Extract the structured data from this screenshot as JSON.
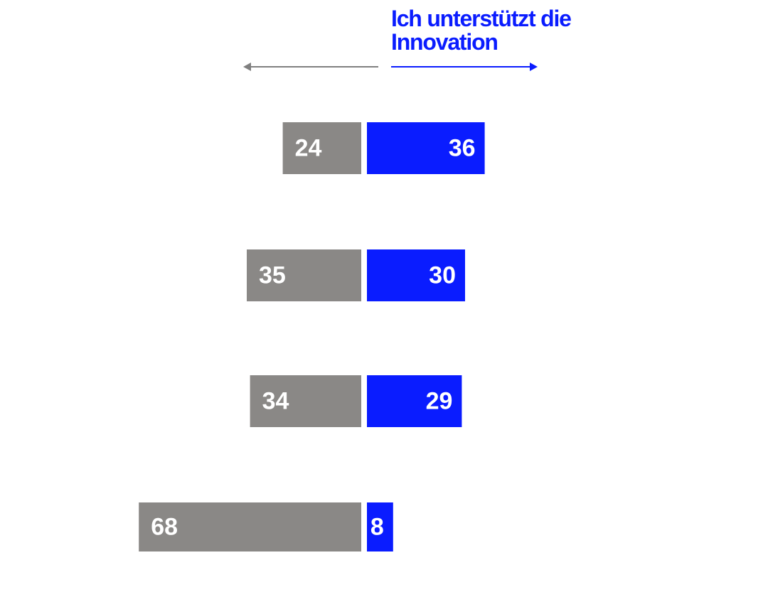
{
  "header": {
    "support_label": "Ich unterstützt die Innovation"
  },
  "colors": {
    "left_bar": "#8a8886",
    "right_bar": "#0a1cff",
    "left_arrow": "#7f7f7f",
    "right_arrow": "#0a1cff",
    "label_text": "#ffffff"
  },
  "chart_data": {
    "type": "bar",
    "orientation": "horizontal-diverging",
    "xlabel": "",
    "ylabel": "",
    "grid": false,
    "series": [
      {
        "name": "",
        "values": [
          24,
          35,
          34,
          68
        ]
      },
      {
        "name": "Ich unterstützt die Innovation",
        "values": [
          36,
          30,
          29,
          8
        ]
      }
    ],
    "xlim": [
      -70,
      70
    ]
  }
}
